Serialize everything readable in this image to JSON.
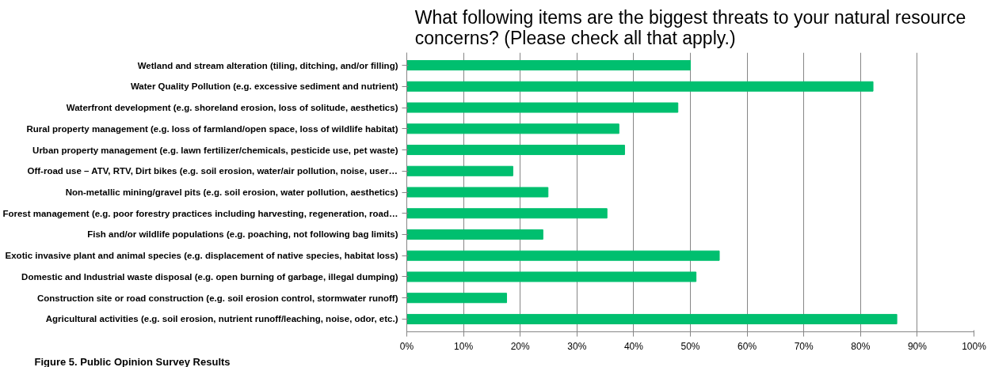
{
  "chart_data": {
    "type": "bar",
    "orientation": "horizontal",
    "title": "What following items are the biggest threats to your natural resource\nconcerns? (Please check all that apply.)",
    "categories": [
      "Wetland and stream alteration (tiling, ditching, and/or filling)",
      "Water Quality Pollution (e.g. excessive sediment and nutrient)",
      "Waterfront development (e.g. shoreland erosion, loss of solitude, aesthetics)",
      "Rural property management (e.g. loss of farmland/open space, loss of wildlife habitat)",
      "Urban property management (e.g. lawn fertilizer/chemicals, pesticide use, pet waste)",
      "Off-road use – ATV, RTV, Dirt bikes (e.g. soil erosion, water/air pollution, noise, user…",
      "Non-metallic mining/gravel pits (e.g. soil erosion, water pollution, aesthetics)",
      "Forest management (e.g. poor forestry practices including harvesting, regeneration, road…",
      "Fish and/or wildlife populations (e.g. poaching, not following bag limits)",
      "Exotic invasive plant and animal species (e.g. displacement of native species, habitat loss)",
      "Domestic and Industrial waste disposal (e.g. open burning of garbage, illegal dumping)",
      "Construction site or road construction (e.g. soil erosion control, stormwater runoff)",
      "Agricultural activities (e.g. soil erosion, nutrient runoff/leaching, noise, odor, etc.)"
    ],
    "values": [
      50,
      82.2,
      47.8,
      37.4,
      38.4,
      18.7,
      24.9,
      35.3,
      24.0,
      55.1,
      51.0,
      17.6,
      86.4
    ],
    "color": "#00bf6f",
    "xlim": [
      0,
      100
    ],
    "xticks": [
      {
        "value": 0,
        "label": "0%"
      },
      {
        "value": 10,
        "label": "10%"
      },
      {
        "value": 20,
        "label": "20%"
      },
      {
        "value": 30,
        "label": "30%"
      },
      {
        "value": 40,
        "label": "40%"
      },
      {
        "value": 50,
        "label": "50%"
      },
      {
        "value": 60,
        "label": "60%"
      },
      {
        "value": 70,
        "label": "70%"
      },
      {
        "value": 80,
        "label": "80%"
      },
      {
        "value": 90,
        "label": "90%"
      },
      {
        "value": 100,
        "label": "100%"
      }
    ],
    "grid": "x",
    "annotations": [
      "Figure 5. Public Opinion Survey Results"
    ]
  }
}
